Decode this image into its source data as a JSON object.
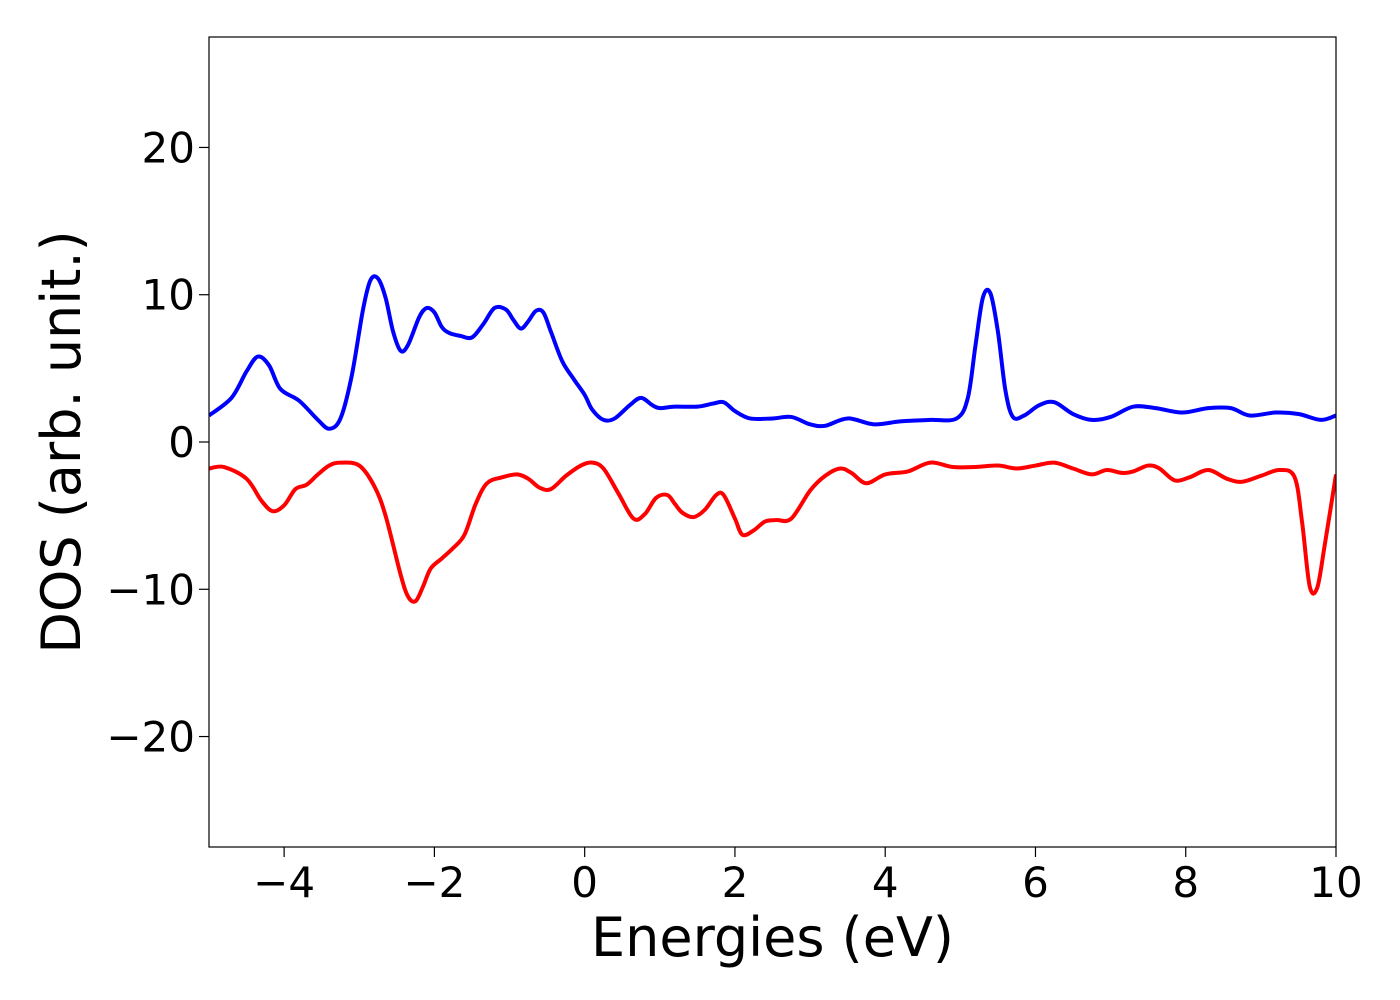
{
  "chart_data": {
    "type": "line",
    "xlabel": "Energies (eV)",
    "ylabel": "DOS (arb. unit.)",
    "xlim": [
      -5,
      10
    ],
    "ylim": [
      -27.5,
      27.5
    ],
    "x_ticks": [
      -4,
      -2,
      0,
      2,
      4,
      6,
      8,
      10
    ],
    "x_tick_labels": [
      "−4",
      "−2",
      "0",
      "2",
      "4",
      "6",
      "8",
      "10"
    ],
    "y_ticks": [
      -20,
      -10,
      0,
      10,
      20
    ],
    "y_tick_labels": [
      "−20",
      "−10",
      "0",
      "10",
      "20"
    ],
    "grid": false,
    "legend": "none",
    "series": [
      {
        "color": "#0000ff",
        "x": [
          -5.0,
          -4.7,
          -4.5,
          -4.35,
          -4.2,
          -4.05,
          -3.8,
          -3.55,
          -3.4,
          -3.25,
          -3.1,
          -2.95,
          -2.85,
          -2.75,
          -2.65,
          -2.55,
          -2.45,
          -2.35,
          -2.2,
          -2.1,
          -2.0,
          -1.9,
          -1.8,
          -1.65,
          -1.5,
          -1.35,
          -1.2,
          -1.05,
          -0.95,
          -0.85,
          -0.75,
          -0.65,
          -0.55,
          -0.45,
          -0.3,
          -0.15,
          0.0,
          0.1,
          0.25,
          0.4,
          0.6,
          0.75,
          0.9,
          1.0,
          1.2,
          1.5,
          1.7,
          1.85,
          2.0,
          2.2,
          2.5,
          2.75,
          3.0,
          3.2,
          3.5,
          3.85,
          4.2,
          4.6,
          4.95,
          5.1,
          5.2,
          5.3,
          5.4,
          5.5,
          5.6,
          5.7,
          5.85,
          6.05,
          6.25,
          6.5,
          6.75,
          7.0,
          7.3,
          7.6,
          7.95,
          8.3,
          8.6,
          8.85,
          9.2,
          9.5,
          9.8,
          10.0
        ],
        "y": [
          1.8,
          3.0,
          4.8,
          5.8,
          5.2,
          3.6,
          2.8,
          1.5,
          0.9,
          1.6,
          4.5,
          9.0,
          11.0,
          11.1,
          9.8,
          7.5,
          6.2,
          6.6,
          8.5,
          9.1,
          8.8,
          7.8,
          7.4,
          7.2,
          7.1,
          8.0,
          9.1,
          9.0,
          8.3,
          7.7,
          8.2,
          8.9,
          8.8,
          7.5,
          5.5,
          4.3,
          3.2,
          2.2,
          1.5,
          1.6,
          2.5,
          3.0,
          2.5,
          2.3,
          2.4,
          2.4,
          2.6,
          2.7,
          2.1,
          1.6,
          1.6,
          1.7,
          1.2,
          1.1,
          1.6,
          1.2,
          1.4,
          1.5,
          1.6,
          3.0,
          6.5,
          9.8,
          10.1,
          7.5,
          3.5,
          1.7,
          1.8,
          2.5,
          2.7,
          1.9,
          1.5,
          1.7,
          2.4,
          2.3,
          2.0,
          2.3,
          2.3,
          1.8,
          2.0,
          1.9,
          1.5,
          1.8
        ]
      },
      {
        "color": "#ff0000",
        "x": [
          -5.0,
          -4.8,
          -4.5,
          -4.3,
          -4.15,
          -4.0,
          -3.85,
          -3.7,
          -3.55,
          -3.4,
          -3.25,
          -3.0,
          -2.8,
          -2.65,
          -2.45,
          -2.35,
          -2.25,
          -2.15,
          -2.05,
          -1.9,
          -1.75,
          -1.6,
          -1.45,
          -1.3,
          -1.1,
          -0.9,
          -0.75,
          -0.6,
          -0.45,
          -0.25,
          -0.05,
          0.1,
          0.25,
          0.45,
          0.65,
          0.8,
          0.95,
          1.1,
          1.2,
          1.3,
          1.45,
          1.6,
          1.75,
          1.85,
          2.0,
          2.1,
          2.25,
          2.4,
          2.55,
          2.75,
          3.0,
          3.2,
          3.4,
          3.55,
          3.75,
          4.0,
          4.3,
          4.6,
          4.9,
          5.2,
          5.5,
          5.75,
          6.0,
          6.25,
          6.5,
          6.75,
          6.95,
          7.15,
          7.3,
          7.5,
          7.65,
          7.85,
          8.05,
          8.3,
          8.55,
          8.75,
          9.0,
          9.25,
          9.45,
          9.55,
          9.65,
          9.75,
          9.85,
          10.0
        ],
        "y": [
          -1.8,
          -1.7,
          -2.5,
          -4.0,
          -4.7,
          -4.3,
          -3.2,
          -2.9,
          -2.2,
          -1.6,
          -1.4,
          -1.6,
          -3.0,
          -5.0,
          -9.0,
          -10.5,
          -10.8,
          -9.8,
          -8.6,
          -7.9,
          -7.2,
          -6.3,
          -4.2,
          -2.8,
          -2.4,
          -2.2,
          -2.5,
          -3.1,
          -3.2,
          -2.3,
          -1.6,
          -1.4,
          -1.8,
          -3.5,
          -5.2,
          -4.9,
          -3.8,
          -3.6,
          -4.2,
          -4.8,
          -5.1,
          -4.6,
          -3.6,
          -3.6,
          -5.2,
          -6.3,
          -6.0,
          -5.4,
          -5.3,
          -5.2,
          -3.3,
          -2.3,
          -1.8,
          -2.1,
          -2.8,
          -2.2,
          -2.0,
          -1.4,
          -1.7,
          -1.7,
          -1.6,
          -1.8,
          -1.6,
          -1.4,
          -1.8,
          -2.2,
          -1.9,
          -2.1,
          -2.0,
          -1.6,
          -1.8,
          -2.6,
          -2.4,
          -1.9,
          -2.5,
          -2.7,
          -2.3,
          -1.9,
          -2.4,
          -5.5,
          -9.8,
          -9.9,
          -7.0,
          -2.2
        ]
      }
    ]
  }
}
